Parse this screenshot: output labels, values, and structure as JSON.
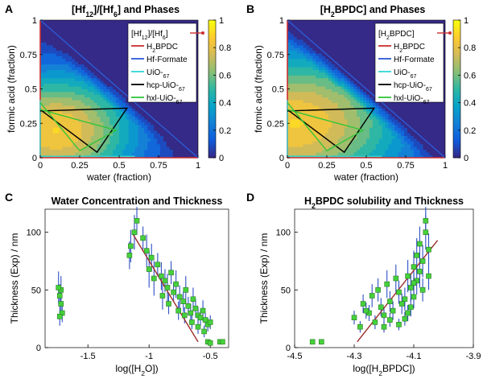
{
  "panels": [
    {
      "letter": "A"
    },
    {
      "letter": "B"
    },
    {
      "letter": "C"
    },
    {
      "letter": "D"
    }
  ],
  "colors": {
    "red": "#cc2f2f",
    "blue": "#2c5bd6",
    "cyan": "#33d6d6",
    "black": "#000000",
    "green": "#33c43a",
    "marker": "#45d13b",
    "errorbar": "#2e4fc4",
    "fit": "#9b2c2c",
    "cmap": [
      "#352a87",
      "#0f5cdd",
      "#1481d6",
      "#06a4ca",
      "#2eb7a4",
      "#87bf77",
      "#d1bb59",
      "#fec832",
      "#f9fb0e"
    ]
  },
  "chart_data": [
    {
      "type": "heatmap",
      "panel": "A",
      "title": "[Hf12]/[Hf6] and Phases",
      "xlabel": "water (fraction)",
      "ylabel": "formic acid (fraction)",
      "xlim": [
        0,
        1
      ],
      "ylim": [
        0,
        1
      ],
      "xticks": [
        "0",
        "0.25",
        "0.5",
        "0.75",
        "1"
      ],
      "yticks": [
        "0",
        "0.25",
        "0.5",
        "0.75",
        "1"
      ],
      "colorbar": {
        "range": [
          0,
          1
        ],
        "ticks": [
          "0",
          "0.2",
          "0.4",
          "0.6",
          "0.8",
          "1"
        ]
      },
      "peak": {
        "x": 0.1,
        "y": 0.2
      },
      "ridge": {
        "slope_x": 0.55,
        "slope_y": 0.45
      },
      "legend": [
        "[Hf12]/[Hf6]",
        "H2BPDC",
        "Hf-Formate",
        "UiO-67",
        "hcp-UiO-67",
        "hxl-UiO-67"
      ],
      "phases": [
        {
          "name": "H2BPDC",
          "points": [
            [
              0,
              1
            ],
            [
              0,
              0
            ],
            [
              1,
              0
            ]
          ]
        },
        {
          "name": "Hf-Formate",
          "points": [
            [
              0,
              1
            ],
            [
              1,
              0
            ]
          ]
        },
        {
          "name": "UiO-67",
          "points": [
            [
              0,
              0.42
            ],
            [
              0,
              0.01
            ],
            [
              0.6,
              0.01
            ]
          ]
        },
        {
          "name": "hcp-UiO-67",
          "points": [
            [
              0,
              0.35
            ],
            [
              0.36,
              0.04
            ],
            [
              0.55,
              0.36
            ],
            [
              0,
              0.34
            ]
          ]
        },
        {
          "name": "hxl-UiO-67",
          "points": [
            [
              0,
              0.4
            ],
            [
              0.25,
              0.05
            ],
            [
              0.48,
              0.2
            ],
            [
              0,
              0.35
            ]
          ]
        }
      ]
    },
    {
      "type": "heatmap",
      "panel": "B",
      "title": "[H2BPDC] and Phases",
      "xlabel": "water (fraction)",
      "ylabel": "formic acid (fraction)",
      "xlim": [
        0,
        1
      ],
      "ylim": [
        0,
        1
      ],
      "xticks": [
        "0",
        "0.25",
        "0.5",
        "0.75",
        "1"
      ],
      "yticks": [
        "0",
        "0.25",
        "0.5",
        "0.75",
        "1"
      ],
      "colorbar": {
        "range": [
          0,
          1
        ],
        "ticks": [
          "0",
          "0.2",
          "0.4",
          "0.6",
          "0.8",
          "1"
        ]
      },
      "peak": {
        "x": 0.05,
        "y": 0.25
      },
      "ridge": {
        "slope_x": 0.75,
        "slope_y": 0.55
      },
      "legend": [
        "[H2BPDC]",
        "H2BPDC",
        "Hf-Formate",
        "UiO-67",
        "hcp-UiO-67",
        "hxl-UiO-67"
      ],
      "phases": [
        {
          "name": "H2BPDC",
          "points": [
            [
              0,
              1
            ],
            [
              0,
              0
            ],
            [
              1,
              0
            ]
          ]
        },
        {
          "name": "Hf-Formate",
          "points": [
            [
              0,
              1
            ],
            [
              1,
              0
            ]
          ]
        },
        {
          "name": "UiO-67",
          "points": [
            [
              0,
              0.42
            ],
            [
              0,
              0.01
            ],
            [
              0.6,
              0.01
            ]
          ]
        },
        {
          "name": "hcp-UiO-67",
          "points": [
            [
              0,
              0.35
            ],
            [
              0.36,
              0.04
            ],
            [
              0.55,
              0.36
            ],
            [
              0,
              0.34
            ]
          ]
        },
        {
          "name": "hxl-UiO-67",
          "points": [
            [
              0,
              0.4
            ],
            [
              0.25,
              0.05
            ],
            [
              0.48,
              0.2
            ],
            [
              0,
              0.35
            ]
          ]
        }
      ]
    },
    {
      "type": "scatter",
      "panel": "C",
      "title": "Water Concentration and Thickness",
      "xlabel": "log([H2O])",
      "ylabel": "Thickness (Exp) / nm",
      "xlim": [
        -1.85,
        -0.35
      ],
      "ylim": [
        0,
        120
      ],
      "xticks": [
        -1.5,
        -1,
        -0.5
      ],
      "xtick_labels": [
        "-1.5",
        "-1",
        "-0.5"
      ],
      "yticks": [
        0,
        50,
        100
      ],
      "ytick_labels": [
        "0",
        "50",
        "100"
      ],
      "fit": [
        [
          -1.13,
          98
        ],
        [
          -0.6,
          5
        ]
      ],
      "points": [
        {
          "x": -1.72,
          "y": 50,
          "err": 12
        },
        {
          "x": -1.73,
          "y": 45,
          "err": 10
        },
        {
          "x": -1.72,
          "y": 38,
          "err": 9
        },
        {
          "x": -1.71,
          "y": 30,
          "err": 8
        },
        {
          "x": -1.73,
          "y": 27,
          "err": 8
        },
        {
          "x": -1.74,
          "y": 52,
          "err": 14
        },
        {
          "x": -1.1,
          "y": 110,
          "err": 12
        },
        {
          "x": -1.12,
          "y": 100,
          "err": 15
        },
        {
          "x": -1.15,
          "y": 88,
          "err": 14
        },
        {
          "x": -1.16,
          "y": 80,
          "err": 12
        },
        {
          "x": -1.05,
          "y": 95,
          "err": 10
        },
        {
          "x": -1.02,
          "y": 84,
          "err": 14
        },
        {
          "x": -0.98,
          "y": 78,
          "err": 12
        },
        {
          "x": -1.0,
          "y": 68,
          "err": 16
        },
        {
          "x": -0.93,
          "y": 72,
          "err": 10
        },
        {
          "x": -0.9,
          "y": 62,
          "err": 12
        },
        {
          "x": -0.87,
          "y": 58,
          "err": 10
        },
        {
          "x": -0.85,
          "y": 52,
          "err": 12
        },
        {
          "x": -0.82,
          "y": 65,
          "err": 10
        },
        {
          "x": -0.8,
          "y": 48,
          "err": 8
        },
        {
          "x": -0.78,
          "y": 55,
          "err": 12
        },
        {
          "x": -0.75,
          "y": 44,
          "err": 10
        },
        {
          "x": -0.72,
          "y": 40,
          "err": 9
        },
        {
          "x": -0.7,
          "y": 50,
          "err": 12
        },
        {
          "x": -0.68,
          "y": 36,
          "err": 8
        },
        {
          "x": -0.66,
          "y": 30,
          "err": 8
        },
        {
          "x": -0.64,
          "y": 42,
          "err": 10
        },
        {
          "x": -0.62,
          "y": 34,
          "err": 8
        },
        {
          "x": -0.6,
          "y": 28,
          "err": 7
        },
        {
          "x": -0.58,
          "y": 26,
          "err": 7
        },
        {
          "x": -0.56,
          "y": 32,
          "err": 9
        },
        {
          "x": -0.54,
          "y": 24,
          "err": 6
        },
        {
          "x": -0.52,
          "y": 20,
          "err": 6
        },
        {
          "x": -0.5,
          "y": 22,
          "err": 6
        },
        {
          "x": -0.96,
          "y": 60,
          "err": 15
        },
        {
          "x": -0.89,
          "y": 45,
          "err": 12
        },
        {
          "x": -0.84,
          "y": 38,
          "err": 9
        },
        {
          "x": -0.76,
          "y": 32,
          "err": 8
        },
        {
          "x": -0.71,
          "y": 28,
          "err": 7
        },
        {
          "x": -0.65,
          "y": 22,
          "err": 6
        },
        {
          "x": -0.6,
          "y": 18,
          "err": 6
        },
        {
          "x": -0.55,
          "y": 14,
          "err": 5
        },
        {
          "x": -0.52,
          "y": 5,
          "err": 0
        },
        {
          "x": -0.5,
          "y": 4,
          "err": 0
        },
        {
          "x": -0.42,
          "y": 5,
          "err": 0
        },
        {
          "x": -0.4,
          "y": 5,
          "err": 0
        }
      ]
    },
    {
      "type": "scatter",
      "panel": "D",
      "title": "H2BPDC solubility and Thickness",
      "xlabel": "log([H2BPDC])",
      "ylabel": "Thickness (Exp) / nm",
      "xlim": [
        -4.5,
        -3.9
      ],
      "ylim": [
        0,
        120
      ],
      "xticks": [
        -4.5,
        -4.3,
        -4.1,
        -3.9
      ],
      "xtick_labels": [
        "-4.5",
        "-4.3",
        "-4.1",
        "-3.9"
      ],
      "yticks": [
        0,
        50,
        100
      ],
      "ytick_labels": [
        "0",
        "50",
        "100"
      ],
      "fit": [
        [
          -4.29,
          5
        ],
        [
          -4.02,
          93
        ]
      ],
      "points": [
        {
          "x": -4.44,
          "y": 5,
          "err": 0
        },
        {
          "x": -4.41,
          "y": 5,
          "err": 0
        },
        {
          "x": -4.3,
          "y": 26,
          "err": 6
        },
        {
          "x": -4.28,
          "y": 18,
          "err": 5
        },
        {
          "x": -4.27,
          "y": 38,
          "err": 8
        },
        {
          "x": -4.25,
          "y": 30,
          "err": 7
        },
        {
          "x": -4.24,
          "y": 45,
          "err": 10
        },
        {
          "x": -4.23,
          "y": 22,
          "err": 6
        },
        {
          "x": -4.22,
          "y": 50,
          "err": 10
        },
        {
          "x": -4.21,
          "y": 35,
          "err": 8
        },
        {
          "x": -4.2,
          "y": 28,
          "err": 7
        },
        {
          "x": -4.19,
          "y": 55,
          "err": 12
        },
        {
          "x": -4.18,
          "y": 40,
          "err": 9
        },
        {
          "x": -4.17,
          "y": 32,
          "err": 8
        },
        {
          "x": -4.16,
          "y": 60,
          "err": 12
        },
        {
          "x": -4.15,
          "y": 48,
          "err": 10
        },
        {
          "x": -4.14,
          "y": 38,
          "err": 9
        },
        {
          "x": -4.13,
          "y": 25,
          "err": 6
        },
        {
          "x": -4.12,
          "y": 62,
          "err": 14
        },
        {
          "x": -4.11,
          "y": 52,
          "err": 12
        },
        {
          "x": -4.1,
          "y": 70,
          "err": 14
        },
        {
          "x": -4.1,
          "y": 44,
          "err": 10
        },
        {
          "x": -4.09,
          "y": 80,
          "err": 15
        },
        {
          "x": -4.09,
          "y": 58,
          "err": 12
        },
        {
          "x": -4.08,
          "y": 66,
          "err": 14
        },
        {
          "x": -4.08,
          "y": 90,
          "err": 15
        },
        {
          "x": -4.07,
          "y": 75,
          "err": 14
        },
        {
          "x": -4.07,
          "y": 50,
          "err": 10
        },
        {
          "x": -4.06,
          "y": 100,
          "err": 15
        },
        {
          "x": -4.06,
          "y": 110,
          "err": 12
        },
        {
          "x": -4.05,
          "y": 85,
          "err": 14
        },
        {
          "x": -4.05,
          "y": 62,
          "err": 12
        },
        {
          "x": -4.2,
          "y": 18,
          "err": 5
        },
        {
          "x": -4.18,
          "y": 24,
          "err": 6
        },
        {
          "x": -4.15,
          "y": 20,
          "err": 5
        },
        {
          "x": -4.13,
          "y": 42,
          "err": 10
        },
        {
          "x": -4.11,
          "y": 35,
          "err": 8
        },
        {
          "x": -4.26,
          "y": 32,
          "err": 7
        },
        {
          "x": -4.12,
          "y": 30,
          "err": 7
        },
        {
          "x": -4.1,
          "y": 56,
          "err": 12
        }
      ]
    }
  ]
}
